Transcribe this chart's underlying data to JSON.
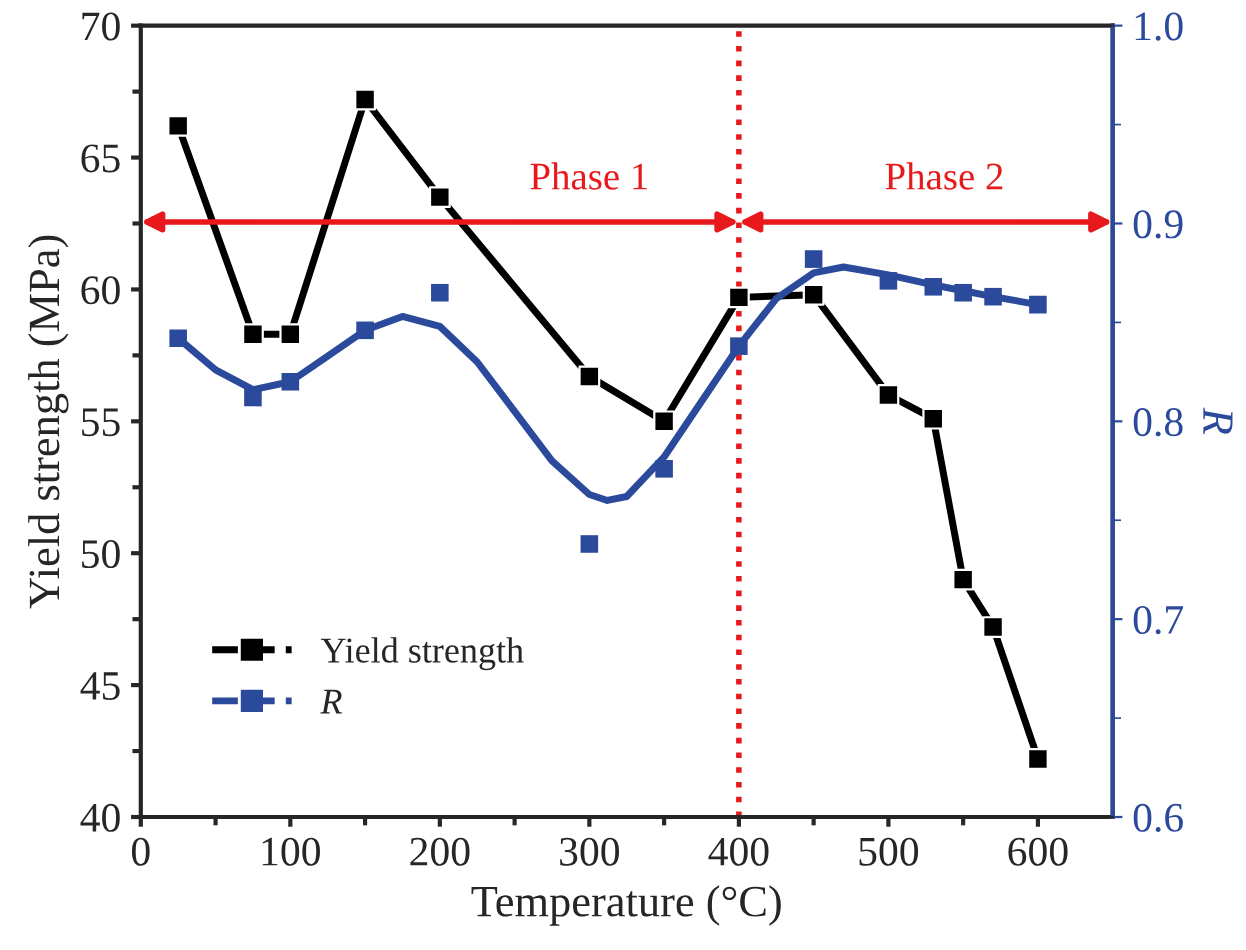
{
  "chart_data": {
    "type": "line",
    "xlabel": "Temperature (°C)",
    "ylabel": "Yield strength (MPa)",
    "y2label": "R",
    "xlim": [
      0,
      650
    ],
    "xticks": [
      0,
      100,
      200,
      300,
      400,
      500,
      600
    ],
    "ylim": [
      40,
      70
    ],
    "yticks": [
      40,
      45,
      50,
      55,
      60,
      65,
      70
    ],
    "y2lim": [
      0.6,
      1.0
    ],
    "y2ticks": [
      0.6,
      0.7,
      0.8,
      0.9,
      {
        "value": 1,
        "label": "1.0"
      }
    ],
    "grid": false,
    "legend": "bottom left",
    "marker": "square",
    "series": [
      {
        "name": "Yield strength",
        "color": "#000000",
        "x": [
          25,
          75,
          100,
          150,
          200,
          300,
          350,
          400,
          450,
          500,
          530,
          550,
          570,
          600
        ],
        "values": [
          66.2,
          58.3,
          58.3,
          67.2,
          63.5,
          56.7,
          55.0,
          59.7,
          59.8,
          56.0,
          55.1,
          49.0,
          47.2,
          42.2
        ]
      },
      {
        "name": "R",
        "type": "scatter",
        "axis": "y2",
        "color": "#2b4a9c",
        "x": [
          25,
          75,
          100,
          150,
          200,
          300,
          350,
          400,
          450,
          500,
          530,
          550,
          570,
          600
        ],
        "values": [
          0.842,
          0.812,
          0.82,
          0.846,
          0.865,
          0.738,
          0.776,
          0.838,
          0.882,
          0.871,
          0.868,
          0.865,
          0.863,
          0.859
        ]
      },
      {
        "type": "line",
        "axis": "y2",
        "color": "#2b4a9c",
        "marker": "none",
        "x": [
          25,
          50,
          75,
          100,
          125,
          150,
          175,
          200,
          225,
          250,
          275,
          300,
          312,
          325,
          350,
          375,
          400,
          425,
          450,
          470,
          500,
          530,
          550,
          570,
          600
        ],
        "values": [
          0.842,
          0.826,
          0.816,
          0.82,
          0.833,
          0.846,
          0.853,
          0.848,
          0.83,
          0.805,
          0.78,
          0.763,
          0.76,
          0.762,
          0.782,
          0.81,
          0.838,
          0.862,
          0.875,
          0.878,
          0.874,
          0.869,
          0.866,
          0.863,
          0.859
        ]
      }
    ],
    "ref_lines": [
      {
        "axis": "x",
        "value": 400,
        "color": "#e8191c",
        "line_style": "dotted"
      }
    ],
    "annotations": [
      "Phase 1",
      "Phase 2"
    ]
  }
}
